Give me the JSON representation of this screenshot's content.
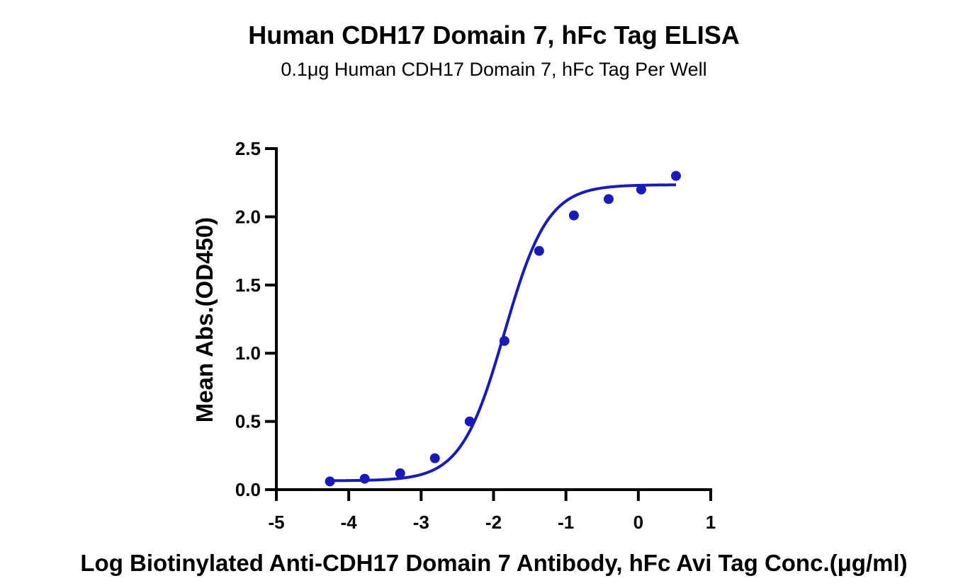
{
  "colors": {
    "series": "#1a1ab8",
    "axis": "#000000",
    "background": "#ffffff"
  },
  "chart_data": {
    "type": "scatter",
    "title": "Human CDH17 Domain 7, hFc Tag ELISA",
    "subtitle": "0.1μg Human CDH17 Domain 7, hFc Tag Per Well",
    "xlabel": "Log Biotinylated Anti-CDH17 Domain 7 Antibody, hFc Avi Tag Conc.(μg/ml)",
    "ylabel": "Mean Abs.(OD450)",
    "xlim": [
      -5,
      1
    ],
    "ylim": [
      0,
      2.5
    ],
    "xticks": [
      "-5",
      "-4",
      "-3",
      "-2",
      "-1",
      "0",
      "1"
    ],
    "yticks": [
      "0.0",
      "0.5",
      "1.0",
      "1.5",
      "2.0",
      "2.5"
    ],
    "grid": false,
    "legend": "none",
    "series": [
      {
        "x": [
          -4.26,
          -3.78,
          -3.29,
          -2.81,
          -2.33,
          -1.85,
          -1.37,
          -0.89,
          -0.41,
          0.04,
          0.52
        ],
        "y": [
          0.06,
          0.08,
          0.12,
          0.23,
          0.5,
          1.09,
          1.75,
          2.01,
          2.13,
          2.2,
          2.3
        ]
      }
    ],
    "fit_curve": {
      "model": "4PL",
      "bottom": 0.065,
      "top": 2.235,
      "logEC50": -1.85,
      "hill": 1.45,
      "x_range": [
        -4.26,
        0.52
      ]
    }
  }
}
